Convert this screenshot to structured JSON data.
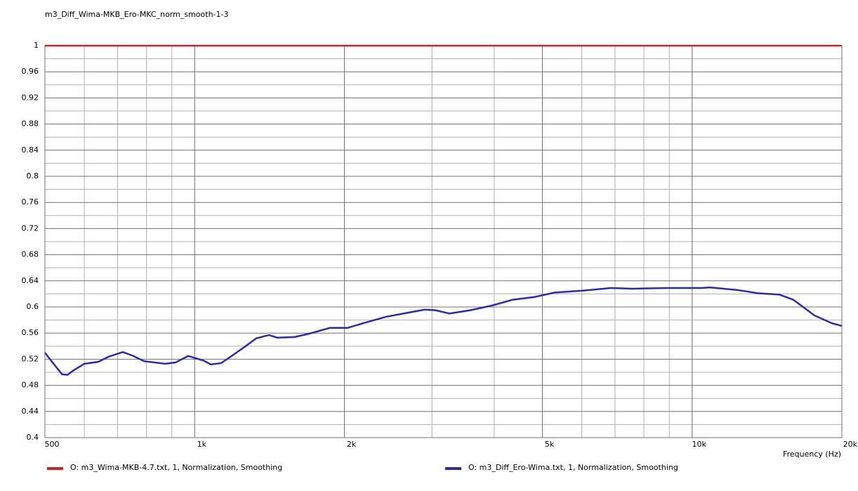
{
  "chart_data": {
    "type": "line",
    "title": "m3_Diff_Wima-MKB_Ero-MKC_norm_smooth-1-3",
    "x_label": "Frequency  (Hz)",
    "xscale": "log",
    "grid": true,
    "xlim": [
      500,
      20000
    ],
    "xticks": [
      500,
      {
        "value": 1000,
        "label": "1k"
      },
      {
        "value": 2000,
        "label": "2k"
      },
      {
        "value": 5000,
        "label": "5k"
      },
      {
        "value": 10000,
        "label": "10k"
      },
      {
        "value": 20000,
        "label": "20k"
      }
    ],
    "xminorticks": [
      600,
      700,
      800,
      900,
      3000,
      4000,
      6000,
      7000,
      8000,
      9000
    ],
    "ylim": [
      0.4,
      1
    ],
    "yticks": [
      0.4,
      0.44,
      0.48,
      0.52,
      0.56,
      0.6,
      0.64,
      0.68,
      0.72,
      0.76,
      0.8,
      0.84,
      0.88,
      0.92,
      0.96,
      1
    ],
    "yminorticks": [
      0.42,
      0.46,
      0.5,
      0.54,
      0.58,
      0.62,
      0.66,
      0.7,
      0.74,
      0.78,
      0.82,
      0.86,
      0.9,
      0.94,
      0.98
    ],
    "series": [
      {
        "name": "O: m3_Wima-MKB-4.7.txt, 1, Normalization, Smoothing",
        "color": "#cc2222",
        "x": [
          500,
          20000
        ],
        "values": [
          1,
          1
        ]
      },
      {
        "name": "O: m3_Diff_Ero-Wima.txt, 1, Normalization, Smoothing",
        "color": "#2a2ab8",
        "x": [
          500,
          518,
          541,
          555,
          571,
          600,
          640,
          672,
          717,
          753,
          791,
          872,
          915,
          970,
          1042,
          1077,
          1130,
          1187,
          1266,
          1330,
          1410,
          1466,
          1590,
          1697,
          1871,
          2030,
          2202,
          2426,
          2675,
          2901,
          3046,
          3251,
          3584,
          3951,
          4355,
          4801,
          5292,
          6029,
          6866,
          7568,
          8904,
          10478,
          10824,
          12324,
          13582,
          14977,
          15980,
          17618,
          19104,
          20000
        ],
        "values": [
          0.53,
          0.515,
          0.497,
          0.496,
          0.503,
          0.513,
          0.516,
          0.524,
          0.531,
          0.525,
          0.517,
          0.513,
          0.515,
          0.525,
          0.518,
          0.512,
          0.514,
          0.525,
          0.54,
          0.552,
          0.557,
          0.553,
          0.554,
          0.559,
          0.568,
          0.568,
          0.576,
          0.585,
          0.591,
          0.596,
          0.595,
          0.59,
          0.595,
          0.602,
          0.611,
          0.615,
          0.622,
          0.625,
          0.629,
          0.628,
          0.629,
          0.629,
          0.63,
          0.626,
          0.621,
          0.619,
          0.611,
          0.587,
          0.575,
          0.571
        ]
      }
    ]
  }
}
